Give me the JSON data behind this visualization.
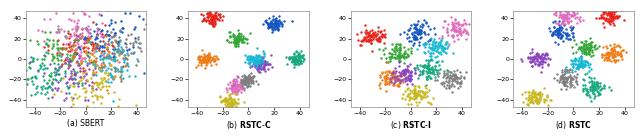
{
  "figsize": [
    6.4,
    1.37
  ],
  "dpi": 100,
  "background": "#ffffff",
  "marker_size": 3,
  "alpha": 1.0,
  "panels": [
    {
      "label_prefix": "(a) ",
      "label_main": "SBERT",
      "label_bold": false,
      "xlim": [
        -47,
        47
      ],
      "ylim": [
        -47,
        47
      ],
      "xticks": [
        -40,
        -20,
        0,
        20,
        40
      ],
      "yticks": [
        -40,
        -20,
        0,
        20,
        40
      ],
      "seed": 1,
      "spread": 12,
      "n_points_per_cluster": 80,
      "centers": [
        [
          -5,
          10
        ],
        [
          15,
          20
        ],
        [
          -20,
          5
        ],
        [
          10,
          0
        ],
        [
          -10,
          -15
        ],
        [
          20,
          -5
        ],
        [
          -5,
          25
        ],
        [
          -30,
          -20
        ],
        [
          5,
          -30
        ],
        [
          25,
          10
        ]
      ]
    },
    {
      "label_prefix": "(b) ",
      "label_main": "RSTC-C",
      "label_bold": true,
      "xlim": [
        -47,
        47
      ],
      "ylim": [
        -47,
        47
      ],
      "xticks": [
        -40,
        -20,
        0,
        20,
        40
      ],
      "yticks": [
        -40,
        -20,
        0,
        20,
        40
      ],
      "seed": 2,
      "spread": 3.5,
      "n_points_per_cluster": 80,
      "centers": [
        [
          -28,
          40
        ],
        [
          20,
          35
        ],
        [
          -10,
          20
        ],
        [
          -32,
          0
        ],
        [
          10,
          -5
        ],
        [
          5,
          0
        ],
        [
          -10,
          -27
        ],
        [
          38,
          0
        ],
        [
          -15,
          -42
        ],
        [
          0,
          -20
        ]
      ]
    },
    {
      "label_prefix": "(c) ",
      "label_main": "RSTC-I",
      "label_bold": true,
      "xlim": [
        -47,
        47
      ],
      "ylim": [
        -47,
        47
      ],
      "xticks": [
        -40,
        -20,
        0,
        20,
        40
      ],
      "yticks": [
        -40,
        -20,
        0,
        20,
        40
      ],
      "seed": 3,
      "spread": 5.0,
      "n_points_per_cluster": 80,
      "centers": [
        [
          -30,
          22
        ],
        [
          5,
          25
        ],
        [
          -10,
          5
        ],
        [
          -15,
          -20
        ],
        [
          -5,
          -15
        ],
        [
          20,
          10
        ],
        [
          35,
          30
        ],
        [
          15,
          -10
        ],
        [
          5,
          -35
        ],
        [
          32,
          -20
        ]
      ]
    },
    {
      "label_prefix": "(d) ",
      "label_main": "RSTC",
      "label_bold": true,
      "xlim": [
        -47,
        47
      ],
      "ylim": [
        -47,
        47
      ],
      "xticks": [
        -40,
        -20,
        0,
        20,
        40
      ],
      "yticks": [
        -40,
        -20,
        0,
        20,
        40
      ],
      "seed": 4,
      "spread": 4.5,
      "n_points_per_cluster": 80,
      "centers": [
        [
          28,
          42
        ],
        [
          -10,
          25
        ],
        [
          10,
          10
        ],
        [
          30,
          5
        ],
        [
          -28,
          0
        ],
        [
          5,
          -5
        ],
        [
          -5,
          42
        ],
        [
          15,
          -28
        ],
        [
          -30,
          -38
        ],
        [
          -5,
          -20
        ]
      ]
    }
  ],
  "cluster_colors": [
    "#d62728",
    "#1f77b4",
    "#2ca02c",
    "#ff7f0e",
    "#9467bd",
    "#17becf",
    "#e377c2",
    "#8c564b",
    "#bcbd22",
    "#7f7f7f"
  ]
}
